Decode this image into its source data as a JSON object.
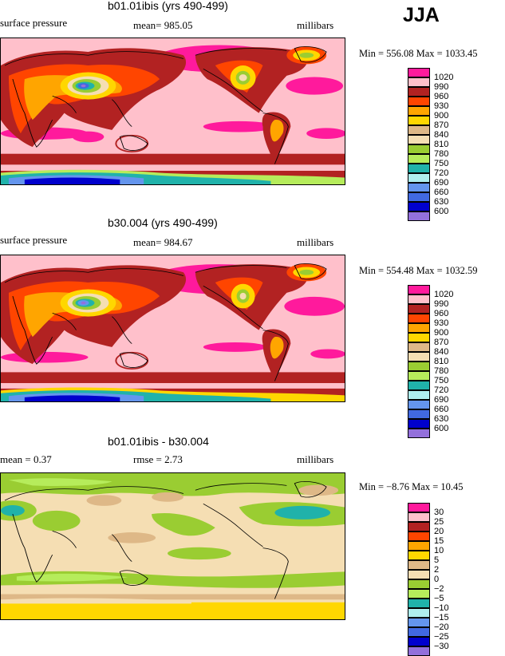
{
  "season": "JJA",
  "panels": [
    {
      "title": "b01.01ibis (yrs 490-499)",
      "left_label": "surface pressure",
      "stat1": "mean=  985.05",
      "units": "millibars",
      "minmax": "Min = 556.08 Max = 1033.45",
      "levels": [
        "1020",
        "990",
        "960",
        "930",
        "900",
        "870",
        "840",
        "810",
        "780",
        "750",
        "720",
        "690",
        "660",
        "630",
        "600"
      ],
      "colors": [
        "#ff1a9c",
        "#ffc0cb",
        "#b22222",
        "#ff4500",
        "#ffa500",
        "#ffd700",
        "#deb887",
        "#f5deb3",
        "#9acd32",
        "#b6ec5b",
        "#20b2aa",
        "#afeeee",
        "#6495ed",
        "#4169e1",
        "#0000cd",
        "#9370db"
      ]
    },
    {
      "title": "b30.004 (yrs 490-499)",
      "left_label": "surface pressure",
      "stat1": "mean=  984.67",
      "units": "millibars",
      "minmax": "Min = 554.48 Max = 1032.59",
      "levels": [
        "1020",
        "990",
        "960",
        "930",
        "900",
        "870",
        "840",
        "810",
        "780",
        "750",
        "720",
        "690",
        "660",
        "630",
        "600"
      ],
      "colors": [
        "#ff1a9c",
        "#ffc0cb",
        "#b22222",
        "#ff4500",
        "#ffa500",
        "#ffd700",
        "#deb887",
        "#f5deb3",
        "#9acd32",
        "#b6ec5b",
        "#20b2aa",
        "#afeeee",
        "#6495ed",
        "#4169e1",
        "#0000cd",
        "#9370db"
      ]
    },
    {
      "title": "b01.01ibis - b30.004",
      "left_label": "mean =    0.37",
      "stat1": "rmse =    2.73",
      "units": "millibars",
      "minmax": "Min =  −8.76 Max =   10.45",
      "levels": [
        "30",
        "25",
        "20",
        "15",
        "10",
        "5",
        "2",
        "0",
        "−2",
        "−5",
        "−10",
        "−15",
        "−20",
        "−25",
        "−30"
      ],
      "colors": [
        "#ff1a9c",
        "#ffc0cb",
        "#b22222",
        "#ff4500",
        "#ffa500",
        "#ffd700",
        "#deb887",
        "#f5deb3",
        "#9acd32",
        "#b6ec5b",
        "#20b2aa",
        "#afeeee",
        "#6495ed",
        "#4169e1",
        "#0000cd",
        "#9370db"
      ]
    }
  ]
}
